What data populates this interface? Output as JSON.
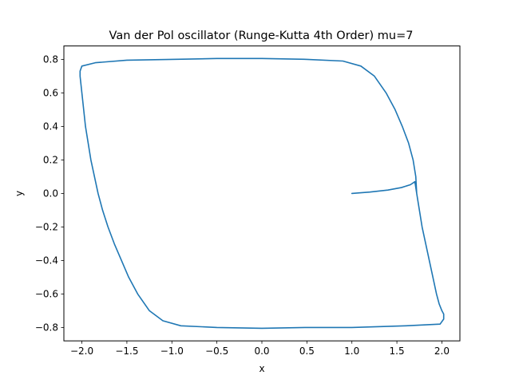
{
  "chart_data": {
    "type": "line",
    "title": "Van der Pol oscillator (Runge-Kutta 4th Order) mu=7",
    "xlabel": "x",
    "ylabel": "y",
    "xlim": [
      -2.2,
      2.2
    ],
    "ylim": [
      -0.88,
      0.88
    ],
    "xticks": [
      -2.0,
      -1.5,
      -1.0,
      -0.5,
      0.0,
      0.5,
      1.0,
      1.5,
      2.0
    ],
    "xtick_labels": [
      "−2.0",
      "−1.5",
      "−1.0",
      "−0.5",
      "0.0",
      "0.5",
      "1.0",
      "1.5",
      "2.0"
    ],
    "yticks": [
      -0.8,
      -0.6,
      -0.4,
      -0.2,
      0.0,
      0.2,
      0.4,
      0.6,
      0.8
    ],
    "ytick_labels": [
      "−0.8",
      "−0.6",
      "−0.4",
      "−0.2",
      "0.0",
      "0.2",
      "0.4",
      "0.6",
      "0.8"
    ],
    "grid": false,
    "series_color": "#1f77b4",
    "series": [
      {
        "values_xy": [
          [
            1.0,
            0.0
          ],
          [
            1.2,
            0.008
          ],
          [
            1.4,
            0.02
          ],
          [
            1.55,
            0.035
          ],
          [
            1.65,
            0.052
          ],
          [
            1.7,
            0.07
          ],
          [
            1.72,
            0.0
          ],
          [
            1.75,
            -0.1
          ],
          [
            1.78,
            -0.2
          ],
          [
            1.82,
            -0.3
          ],
          [
            1.86,
            -0.4
          ],
          [
            1.9,
            -0.5
          ],
          [
            1.94,
            -0.6
          ],
          [
            1.97,
            -0.66
          ],
          [
            2.0,
            -0.7
          ],
          [
            2.02,
            -0.72
          ],
          [
            2.02,
            -0.75
          ],
          [
            1.98,
            -0.78
          ],
          [
            1.6,
            -0.79
          ],
          [
            1.0,
            -0.8
          ],
          [
            0.5,
            -0.8
          ],
          [
            0.0,
            -0.805
          ],
          [
            -0.5,
            -0.8
          ],
          [
            -0.9,
            -0.79
          ],
          [
            -1.1,
            -0.76
          ],
          [
            -1.25,
            -0.7
          ],
          [
            -1.38,
            -0.6
          ],
          [
            -1.48,
            -0.5
          ],
          [
            -1.56,
            -0.4
          ],
          [
            -1.64,
            -0.3
          ],
          [
            -1.71,
            -0.2
          ],
          [
            -1.77,
            -0.1
          ],
          [
            -1.82,
            0.0
          ],
          [
            -1.86,
            0.1
          ],
          [
            -1.9,
            0.2
          ],
          [
            -1.93,
            0.3
          ],
          [
            -1.96,
            0.4
          ],
          [
            -1.98,
            0.5
          ],
          [
            -2.0,
            0.6
          ],
          [
            -2.02,
            0.7
          ],
          [
            -2.02,
            0.73
          ],
          [
            -2.0,
            0.76
          ],
          [
            -1.85,
            0.78
          ],
          [
            -1.5,
            0.795
          ],
          [
            -1.0,
            0.8
          ],
          [
            -0.5,
            0.805
          ],
          [
            0.0,
            0.805
          ],
          [
            0.5,
            0.8
          ],
          [
            0.9,
            0.79
          ],
          [
            1.1,
            0.76
          ],
          [
            1.25,
            0.7
          ],
          [
            1.38,
            0.6
          ],
          [
            1.48,
            0.5
          ],
          [
            1.56,
            0.4
          ],
          [
            1.63,
            0.3
          ],
          [
            1.68,
            0.2
          ],
          [
            1.71,
            0.1
          ],
          [
            1.72,
            0.0
          ],
          [
            1.75,
            -0.1
          ],
          [
            1.78,
            -0.2
          ],
          [
            1.82,
            -0.3
          ],
          [
            1.86,
            -0.4
          ],
          [
            1.9,
            -0.5
          ],
          [
            1.94,
            -0.6
          ],
          [
            1.97,
            -0.66
          ],
          [
            2.0,
            -0.7
          ],
          [
            2.02,
            -0.72
          ],
          [
            2.02,
            -0.75
          ],
          [
            1.98,
            -0.78
          ],
          [
            1.6,
            -0.79
          ],
          [
            1.0,
            -0.8
          ],
          [
            0.5,
            -0.8
          ],
          [
            0.0,
            -0.805
          ],
          [
            -0.5,
            -0.8
          ],
          [
            -0.9,
            -0.79
          ],
          [
            -1.1,
            -0.76
          ],
          [
            -1.25,
            -0.7
          ],
          [
            -1.38,
            -0.6
          ],
          [
            -1.48,
            -0.5
          ],
          [
            -1.56,
            -0.4
          ],
          [
            -1.64,
            -0.3
          ],
          [
            -1.71,
            -0.2
          ],
          [
            -1.77,
            -0.1
          ],
          [
            -1.82,
            0.0
          ],
          [
            -1.86,
            0.1
          ],
          [
            -1.9,
            0.2
          ],
          [
            -1.93,
            0.3
          ],
          [
            -1.96,
            0.4
          ],
          [
            -1.98,
            0.5
          ],
          [
            -2.0,
            0.6
          ],
          [
            -2.02,
            0.7
          ],
          [
            -2.02,
            0.73
          ],
          [
            -2.0,
            0.76
          ],
          [
            -1.85,
            0.78
          ],
          [
            -1.5,
            0.795
          ],
          [
            -1.0,
            0.8
          ],
          [
            -0.5,
            0.805
          ],
          [
            0.0,
            0.805
          ],
          [
            0.5,
            0.8
          ],
          [
            0.9,
            0.79
          ],
          [
            1.1,
            0.76
          ],
          [
            1.25,
            0.7
          ],
          [
            1.38,
            0.6
          ],
          [
            1.48,
            0.5
          ],
          [
            1.56,
            0.4
          ],
          [
            1.63,
            0.3
          ],
          [
            1.68,
            0.2
          ],
          [
            1.71,
            0.1
          ],
          [
            1.72,
            0.0
          ]
        ]
      }
    ]
  }
}
